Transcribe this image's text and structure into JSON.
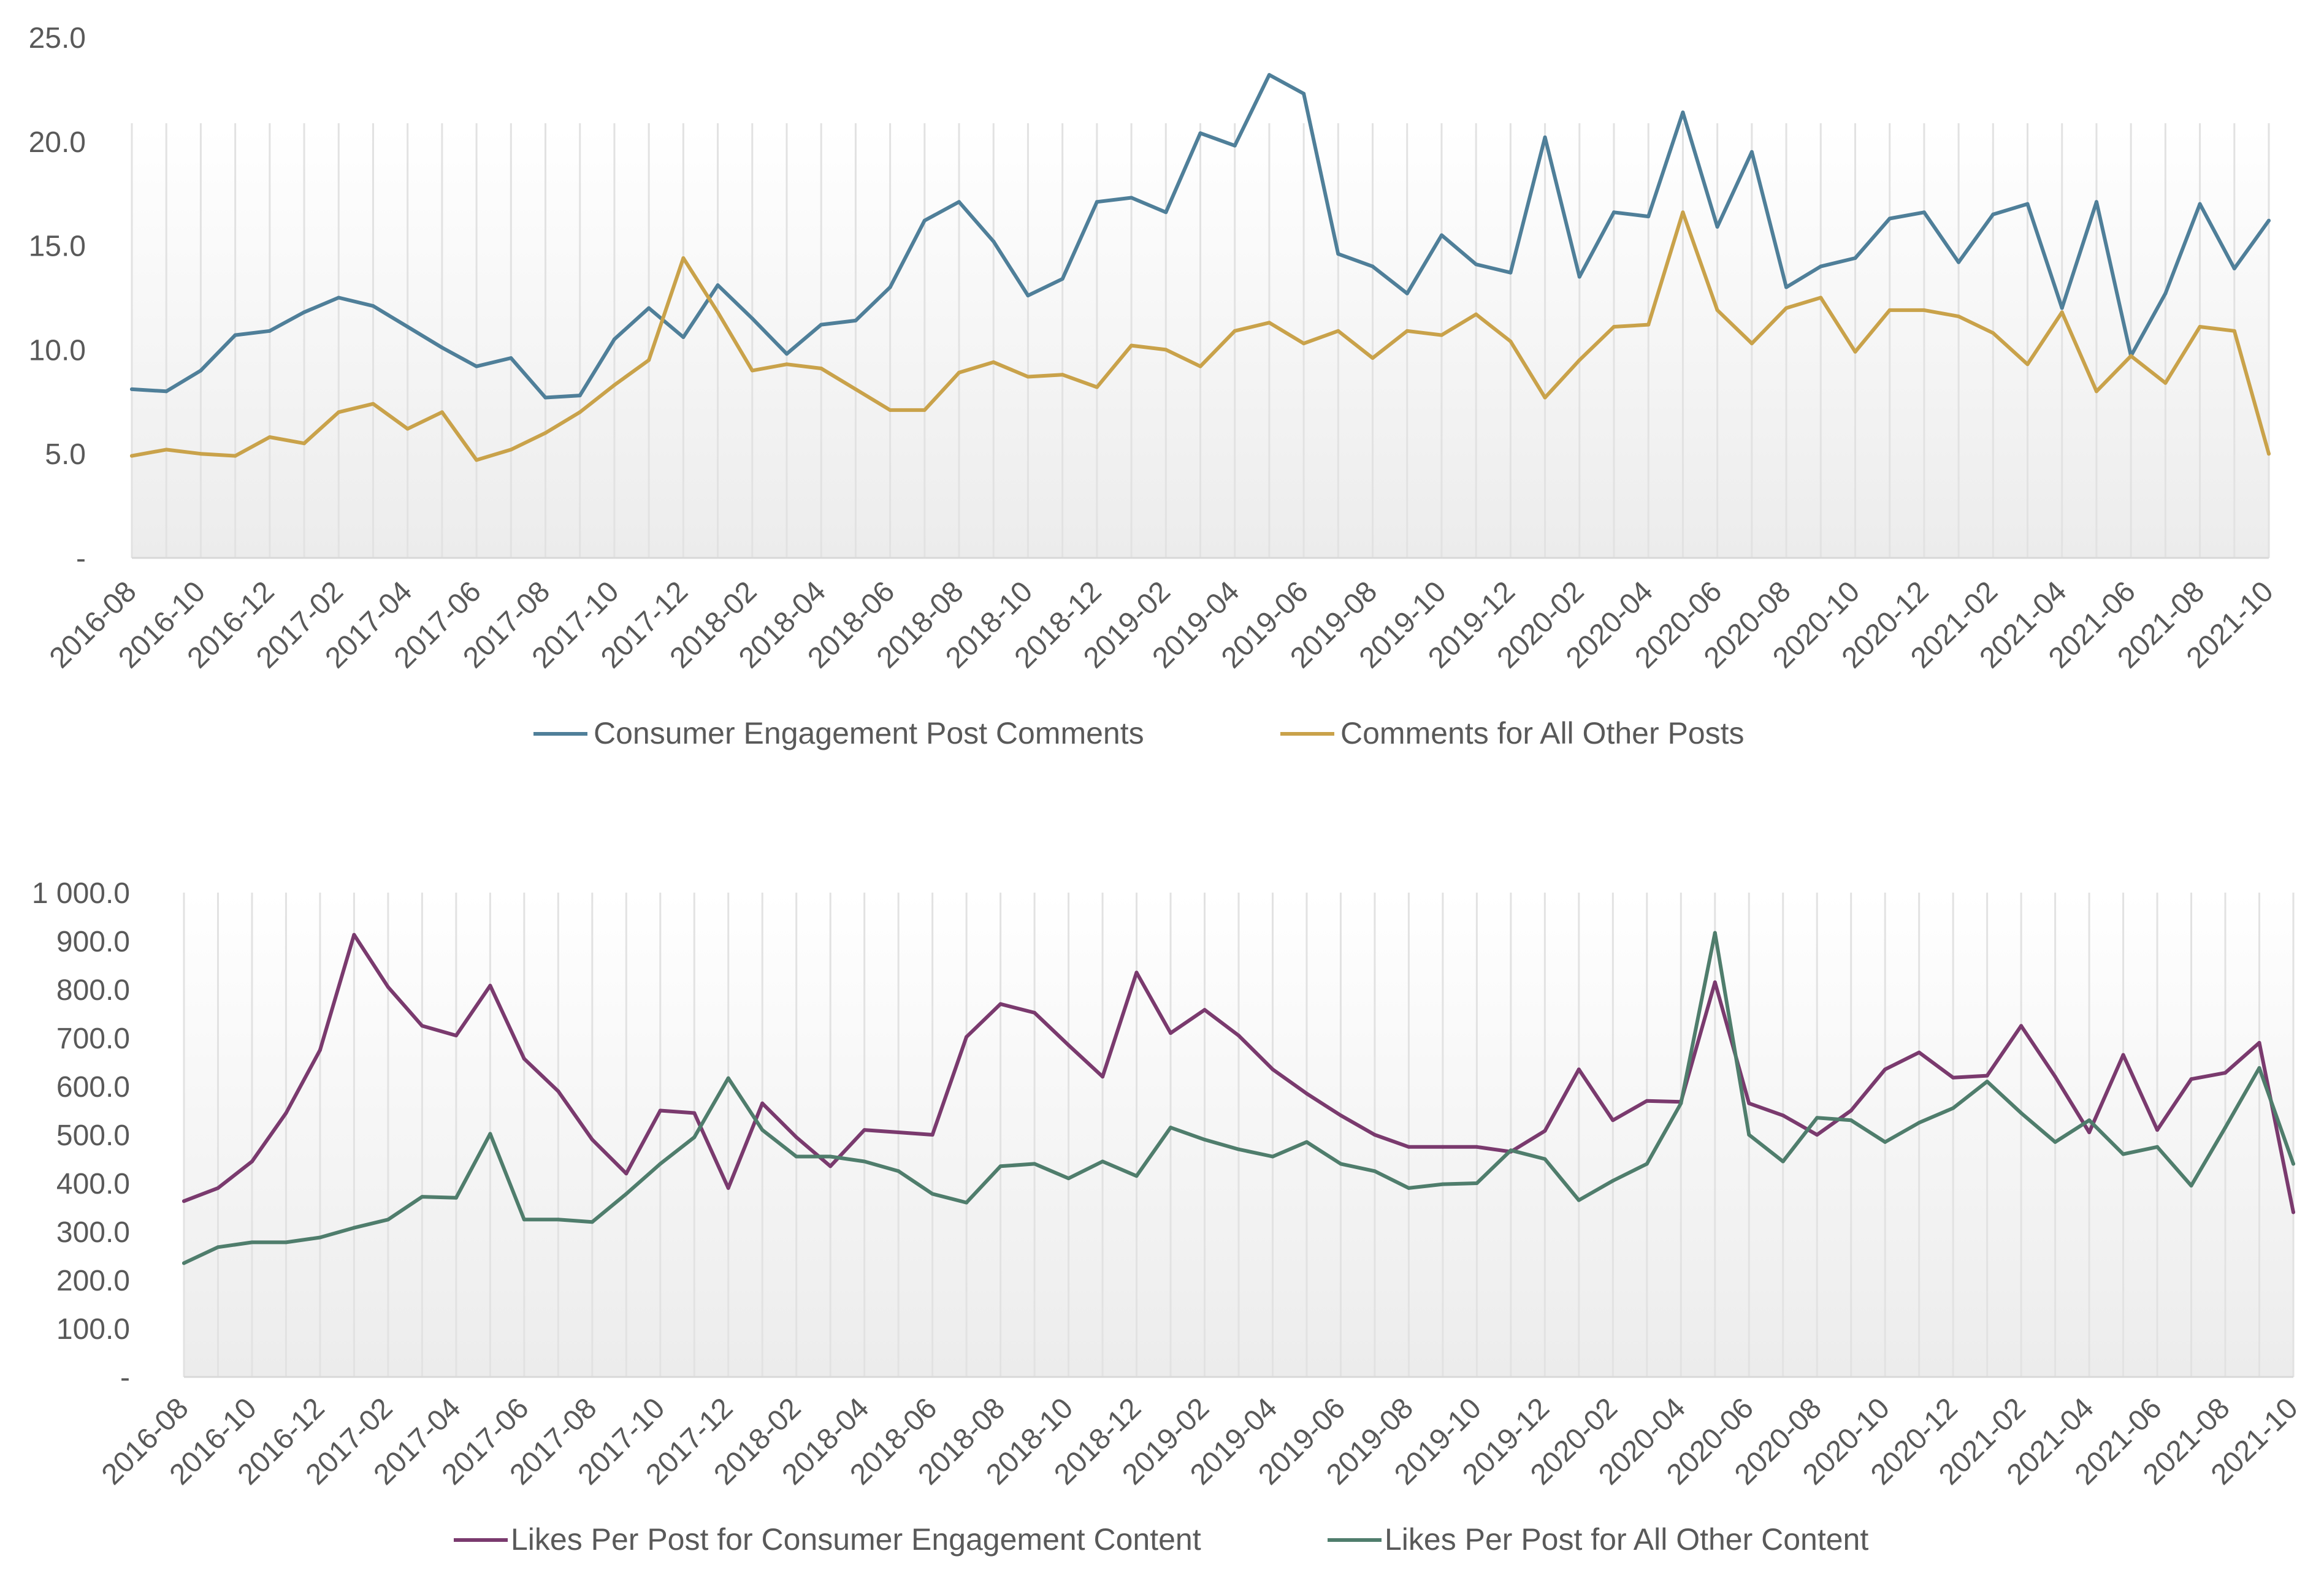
{
  "chart_data": [
    {
      "type": "line",
      "x": [
        "2016-08",
        "2016-09",
        "2016-10",
        "2016-11",
        "2016-12",
        "2017-01",
        "2017-02",
        "2017-03",
        "2017-04",
        "2017-05",
        "2017-06",
        "2017-07",
        "2017-08",
        "2017-09",
        "2017-10",
        "2017-11",
        "2017-12",
        "2018-01",
        "2018-02",
        "2018-03",
        "2018-04",
        "2018-05",
        "2018-06",
        "2018-07",
        "2018-08",
        "2018-09",
        "2018-10",
        "2018-11",
        "2018-12",
        "2019-01",
        "2019-02",
        "2019-03",
        "2019-04",
        "2019-05",
        "2019-06",
        "2019-07",
        "2019-08",
        "2019-09",
        "2019-10",
        "2019-11",
        "2019-12",
        "2020-01",
        "2020-02",
        "2020-03",
        "2020-04",
        "2020-05",
        "2020-06",
        "2020-07",
        "2020-08",
        "2020-09",
        "2020-10",
        "2020-11",
        "2020-12",
        "2021-01",
        "2021-02",
        "2021-03",
        "2021-04",
        "2021-05",
        "2021-06",
        "2021-07",
        "2021-08",
        "2021-09",
        "2021-10"
      ],
      "tick_labels": [
        "2016-08",
        "2016-10",
        "2016-12",
        "2017-02",
        "2017-04",
        "2017-06",
        "2017-08",
        "2017-10",
        "2017-12",
        "2018-02",
        "2018-04",
        "2018-06",
        "2018-08",
        "2018-10",
        "2018-12",
        "2019-02",
        "2019-04",
        "2019-06",
        "2019-08",
        "2019-10",
        "2019-12",
        "2020-02",
        "2020-04",
        "2020-06",
        "2020-08",
        "2020-10",
        "2020-12",
        "2021-02",
        "2021-04",
        "2021-06",
        "2021-08",
        "2021-10"
      ],
      "y_tick_labels": [
        "-",
        "5.0",
        "10.0",
        "15.0",
        "20.0",
        "25.0"
      ],
      "ylim": [
        0,
        25
      ],
      "grid": "vertical lines at each month",
      "legend_position": "bottom",
      "series": [
        {
          "name": "Consumer Engagement Post Comments",
          "color": "#4f7f99",
          "values": [
            8.1,
            8.0,
            9.0,
            10.7,
            10.9,
            11.8,
            12.5,
            12.1,
            11.1,
            10.1,
            9.2,
            9.6,
            7.7,
            7.8,
            10.5,
            12.0,
            10.6,
            13.1,
            11.5,
            9.8,
            11.2,
            11.4,
            13.0,
            16.2,
            17.1,
            15.2,
            12.6,
            13.4,
            17.1,
            17.3,
            16.6,
            20.4,
            19.8,
            23.2,
            22.3,
            14.6,
            14.0,
            12.7,
            15.5,
            14.1,
            13.7,
            20.2,
            13.5,
            16.6,
            16.4,
            21.4,
            15.9,
            19.5,
            13.0,
            14.0,
            14.4,
            16.3,
            16.6,
            14.2,
            16.5,
            17.0,
            12.0,
            17.1,
            9.7,
            12.7,
            17.0,
            13.9,
            16.2
          ]
        },
        {
          "name": "Comments for All Other Posts",
          "color": "#c9a24a",
          "values": [
            4.9,
            5.2,
            5.0,
            4.9,
            5.8,
            5.5,
            7.0,
            7.4,
            6.2,
            7.0,
            4.7,
            5.2,
            6.0,
            7.0,
            8.3,
            9.5,
            14.4,
            11.8,
            9.0,
            9.3,
            9.1,
            8.1,
            7.1,
            7.1,
            8.9,
            9.4,
            8.7,
            8.8,
            8.2,
            10.2,
            10.0,
            9.2,
            10.9,
            11.3,
            10.3,
            10.9,
            9.6,
            10.9,
            10.7,
            11.7,
            10.4,
            7.7,
            9.5,
            11.1,
            11.2,
            16.6,
            11.9,
            10.3,
            12.0,
            12.5,
            9.9,
            11.9,
            11.9,
            11.6,
            10.8,
            9.3,
            11.8,
            8.0,
            9.7,
            8.4,
            11.1,
            10.9,
            5.0
          ]
        }
      ]
    },
    {
      "type": "line",
      "x": [
        "2016-08",
        "2016-09",
        "2016-10",
        "2016-11",
        "2016-12",
        "2017-01",
        "2017-02",
        "2017-03",
        "2017-04",
        "2017-05",
        "2017-06",
        "2017-07",
        "2017-08",
        "2017-09",
        "2017-10",
        "2017-11",
        "2017-12",
        "2018-01",
        "2018-02",
        "2018-03",
        "2018-04",
        "2018-05",
        "2018-06",
        "2018-07",
        "2018-08",
        "2018-09",
        "2018-10",
        "2018-11",
        "2018-12",
        "2019-01",
        "2019-02",
        "2019-03",
        "2019-04",
        "2019-05",
        "2019-06",
        "2019-07",
        "2019-08",
        "2019-09",
        "2019-10",
        "2019-11",
        "2019-12",
        "2020-01",
        "2020-02",
        "2020-03",
        "2020-04",
        "2020-05",
        "2020-06",
        "2020-07",
        "2020-08",
        "2020-09",
        "2020-10",
        "2020-11",
        "2020-12",
        "2021-01",
        "2021-02",
        "2021-03",
        "2021-04",
        "2021-05",
        "2021-06",
        "2021-07",
        "2021-08",
        "2021-09",
        "2021-10"
      ],
      "tick_labels": [
        "2016-08",
        "2016-10",
        "2016-12",
        "2017-02",
        "2017-04",
        "2017-06",
        "2017-08",
        "2017-10",
        "2017-12",
        "2018-02",
        "2018-04",
        "2018-06",
        "2018-08",
        "2018-10",
        "2018-12",
        "2019-02",
        "2019-04",
        "2019-06",
        "2019-08",
        "2019-10",
        "2019-12",
        "2020-02",
        "2020-04",
        "2020-06",
        "2020-08",
        "2020-10",
        "2020-12",
        "2021-02",
        "2021-04",
        "2021-06",
        "2021-08",
        "2021-10"
      ],
      "y_tick_labels": [
        "-",
        "100.0",
        "200.0",
        "300.0",
        "400.0",
        "500.0",
        "600.0",
        "700.0",
        "800.0",
        "900.0",
        "1 000.0"
      ],
      "ylim": [
        0,
        1000
      ],
      "grid": "vertical lines at each month",
      "legend_position": "bottom",
      "series": [
        {
          "name": "Likes Per Post for Consumer Engagement Content",
          "color": "#7a3a6e",
          "values": [
            363,
            390,
            445,
            545,
            675,
            913,
            805,
            725,
            705,
            808,
            657,
            590,
            490,
            420,
            550,
            545,
            390,
            565,
            495,
            435,
            510,
            505,
            500,
            702,
            770,
            752,
            685,
            620,
            835,
            710,
            758,
            705,
            635,
            585,
            540,
            500,
            475,
            475,
            475,
            465,
            508,
            635,
            530,
            570,
            568,
            815,
            565,
            540,
            500,
            550,
            635,
            670,
            618,
            622,
            725,
            620,
            505,
            665,
            510,
            615,
            628,
            690,
            340
          ]
        },
        {
          "name": "Likes Per Post for All Other Content",
          "color": "#4f7d6c",
          "values": [
            235,
            268,
            278,
            278,
            288,
            308,
            325,
            372,
            370,
            502,
            325,
            325,
            320,
            378,
            440,
            495,
            617,
            510,
            455,
            455,
            445,
            425,
            378,
            360,
            435,
            440,
            410,
            445,
            415,
            515,
            490,
            470,
            455,
            485,
            440,
            425,
            390,
            398,
            400,
            468,
            450,
            365,
            405,
            440,
            565,
            917,
            500,
            445,
            535,
            530,
            485,
            525,
            555,
            610,
            545,
            485,
            530,
            460,
            475,
            395,
            515,
            638,
            440
          ]
        }
      ]
    }
  ]
}
